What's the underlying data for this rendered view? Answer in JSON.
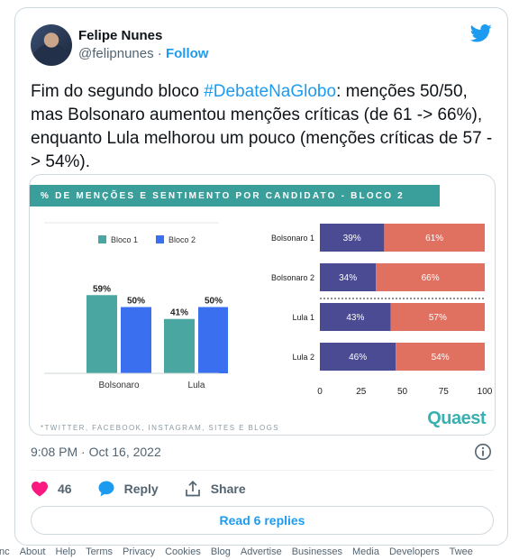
{
  "author": {
    "name": "Felipe Nunes",
    "handle": "@felipnunes",
    "separator": "·",
    "follow": "Follow"
  },
  "tweet": {
    "text_pre": "Fim do segundo bloco ",
    "hashtag": "#DebateNaGlobo",
    "text_post": ": menções 50/50, mas Bolsonaro aumentou menções críticas (de 61 -> 66%), enquanto Lula melhorou um pouco (menções críticas de 57 -> 54%)."
  },
  "media": {
    "title": "% DE MENÇÕES E SENTIMENTO POR CANDIDATO - BLOCO 2",
    "footer": "*TWITTER, FACEBOOK, INSTAGRAM, SITES E BLOGS",
    "logo": "Quaest",
    "colors": {
      "teal": "#4aa6a0",
      "blue": "#3a6ff0",
      "navy": "#4a4b93",
      "salmon": "#e07060",
      "title_bar": "#3a9f9a"
    }
  },
  "chart_data": [
    {
      "type": "bar",
      "categories": [
        "Bolsonaro",
        "Lula"
      ],
      "series": [
        {
          "name": "Bloco 1",
          "values": [
            59,
            41
          ]
        },
        {
          "name": "Bloco 2",
          "values": [
            50,
            50
          ]
        }
      ],
      "data_labels": [
        [
          "59%",
          "41%"
        ],
        [
          "50%",
          "50%"
        ]
      ],
      "legend": "top",
      "grid": false
    },
    {
      "type": "bar",
      "orientation": "horizontal",
      "stacked": true,
      "categories": [
        "Bolsonaro 1",
        "Bolsonaro 2",
        "Lula 1",
        "Lula 2"
      ],
      "series": [
        {
          "values": [
            39,
            34,
            43,
            46
          ]
        },
        {
          "values": [
            61,
            66,
            57,
            54
          ]
        }
      ],
      "xticks": [
        "0",
        "25",
        "50",
        "75",
        "100"
      ],
      "xlim": [
        0,
        100
      ],
      "grid": false
    }
  ],
  "timestamp": "9:08 PM · Oct 16, 2022",
  "actions": {
    "likes": "46",
    "reply": "Reply",
    "share": "Share"
  },
  "read_replies": "Read 6 replies",
  "footer_links": [
    "Inc",
    "About",
    "Help",
    "Terms",
    "Privacy",
    "Cookies",
    "Blog",
    "Advertise",
    "Businesses",
    "Media",
    "Developers",
    "Twee"
  ]
}
